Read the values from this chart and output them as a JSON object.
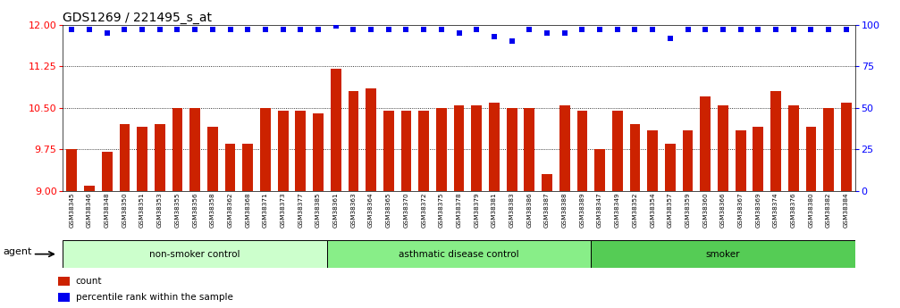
{
  "title": "GDS1269 / 221495_s_at",
  "samples": [
    "GSM38345",
    "GSM38346",
    "GSM38348",
    "GSM38350",
    "GSM38351",
    "GSM38353",
    "GSM38355",
    "GSM38356",
    "GSM38358",
    "GSM38362",
    "GSM38368",
    "GSM38371",
    "GSM38373",
    "GSM38377",
    "GSM38385",
    "GSM38361",
    "GSM38363",
    "GSM38364",
    "GSM38365",
    "GSM38370",
    "GSM38372",
    "GSM38375",
    "GSM38378",
    "GSM38379",
    "GSM38381",
    "GSM38383",
    "GSM38386",
    "GSM38387",
    "GSM38388",
    "GSM38389",
    "GSM38347",
    "GSM38349",
    "GSM38352",
    "GSM38354",
    "GSM38357",
    "GSM38359",
    "GSM38360",
    "GSM38366",
    "GSM38367",
    "GSM38369",
    "GSM38374",
    "GSM38376",
    "GSM38380",
    "GSM38382",
    "GSM38384"
  ],
  "bar_values": [
    9.75,
    9.1,
    9.7,
    10.2,
    10.15,
    10.2,
    10.5,
    10.5,
    10.15,
    9.85,
    9.85,
    10.5,
    10.45,
    10.45,
    10.4,
    11.2,
    10.8,
    10.85,
    10.45,
    10.45,
    10.45,
    10.5,
    10.55,
    10.55,
    10.6,
    10.5,
    10.5,
    9.3,
    10.55,
    10.45,
    9.75,
    10.45,
    10.2,
    10.1,
    9.85,
    10.1,
    10.7,
    10.55,
    10.1,
    10.15,
    10.8,
    10.55,
    10.15,
    10.5,
    10.6
  ],
  "percentile_values": [
    97,
    97,
    95,
    97,
    97,
    97,
    97,
    97,
    97,
    97,
    97,
    97,
    97,
    97,
    97,
    99,
    97,
    97,
    97,
    97,
    97,
    97,
    95,
    97,
    93,
    90,
    97,
    95,
    95,
    97,
    97,
    97,
    97,
    97,
    92,
    97,
    97,
    97,
    97,
    97,
    97,
    97,
    97,
    97,
    97
  ],
  "groups": [
    {
      "label": "non-smoker control",
      "start": 0,
      "end": 15,
      "color": "#ccffcc"
    },
    {
      "label": "asthmatic disease control",
      "start": 15,
      "end": 30,
      "color": "#88ee88"
    },
    {
      "label": "smoker",
      "start": 30,
      "end": 45,
      "color": "#55cc55"
    }
  ],
  "ylim_left": [
    9.0,
    12.0
  ],
  "ylim_right": [
    0,
    100
  ],
  "yticks_left": [
    9.0,
    9.75,
    10.5,
    11.25,
    12.0
  ],
  "yticks_right": [
    0,
    25,
    50,
    75,
    100
  ],
  "bar_color": "#cc2200",
  "dot_color": "#0000ee",
  "background_color": "#ffffff",
  "title_fontsize": 10,
  "agent_label": "agent",
  "group_label_fontsize": 8,
  "legend_count_label": "count",
  "legend_pct_label": "percentile rank within the sample"
}
